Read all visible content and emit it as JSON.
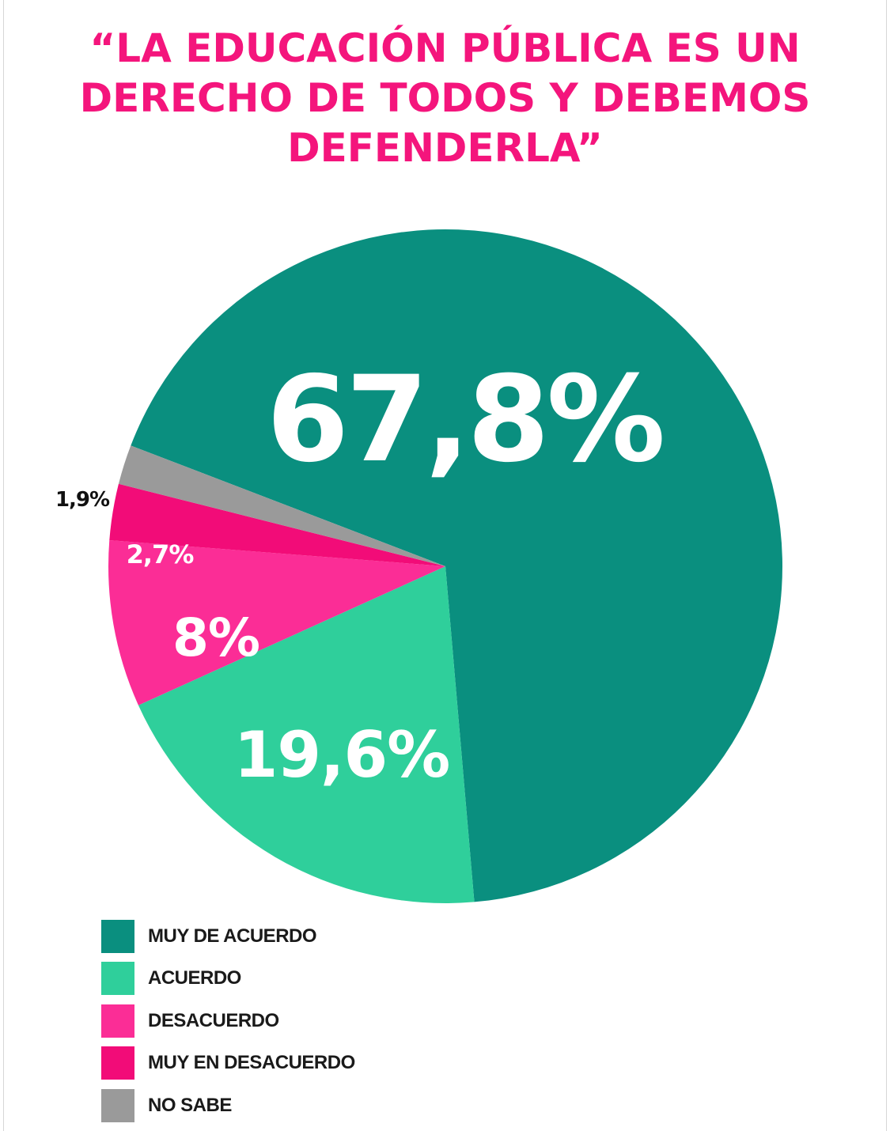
{
  "chart_data": {
    "type": "pie",
    "title_lines": [
      "“LA EDUCACIÓN PÚBLICA ES UN",
      "DERECHO DE TODOS Y DEBEMOS",
      "DEFENDERLA”"
    ],
    "slices": [
      {
        "category": "MUY DE ACUERDO",
        "value": 67.8,
        "label": "67,8%",
        "color": "#0a8f7f",
        "label_color": "#ffffff"
      },
      {
        "category": "ACUERDO",
        "value": 19.6,
        "label": "19,6%",
        "color": "#2fcf9b",
        "label_color": "#ffffff"
      },
      {
        "category": "DESACUERDO",
        "value": 8,
        "label": "8%",
        "color": "#fb2d96",
        "label_color": "#ffffff"
      },
      {
        "category": "MUY EN DESACUERDO",
        "value": 2.7,
        "label": "2,7%",
        "color": "#f20c78",
        "label_color": "#ffffff"
      },
      {
        "category": "NO SABE",
        "value": 1.9,
        "label": "1,9%",
        "color": "#9a9a9a",
        "label_color": "#111111"
      }
    ],
    "legend_position": "bottom-left"
  }
}
